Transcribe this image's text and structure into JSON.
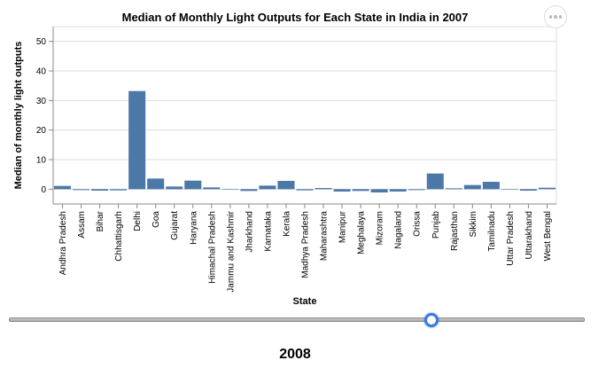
{
  "chart_data": {
    "type": "bar",
    "title": "Median of Monthly Light Outputs for Each State in India in 2007",
    "xlabel": "State",
    "ylabel": "Median of monthly light outputs",
    "ylim": [
      -5,
      55
    ],
    "yticks": [
      0,
      10,
      20,
      30,
      40,
      50
    ],
    "grid": true,
    "categories": [
      "Andhra Pradesh",
      "Assam",
      "Bihar",
      "Chhattisgarh",
      "Delhi",
      "Goa",
      "Gujarat",
      "Haryana",
      "Himachal Pradesh",
      "Jammu and Kashmir",
      "Jharkhand",
      "Karnataka",
      "Kerala",
      "Madhya Pradesh",
      "Maharashtra",
      "Manipur",
      "Meghalaya",
      "Mizoram",
      "Nagaland",
      "Orissa",
      "Punjab",
      "Rajasthan",
      "Sikkim",
      "Tamilnadu",
      "Uttar Pradesh",
      "Uttarakhand",
      "West Bengal"
    ],
    "values": [
      1.1,
      -0.3,
      -0.5,
      -0.4,
      33.2,
      3.6,
      0.9,
      2.9,
      0.6,
      0.05,
      -0.6,
      1.2,
      2.8,
      -0.4,
      0.4,
      -0.8,
      -0.6,
      -1.1,
      -0.8,
      -0.3,
      5.3,
      0.3,
      1.4,
      2.5,
      0.1,
      -0.5,
      0.5
    ],
    "bar_color": "#4c78a8"
  },
  "controls": {
    "slider_label": "2008",
    "slider_value_fraction": 0.74,
    "accent_color": "#3a7ae0"
  }
}
